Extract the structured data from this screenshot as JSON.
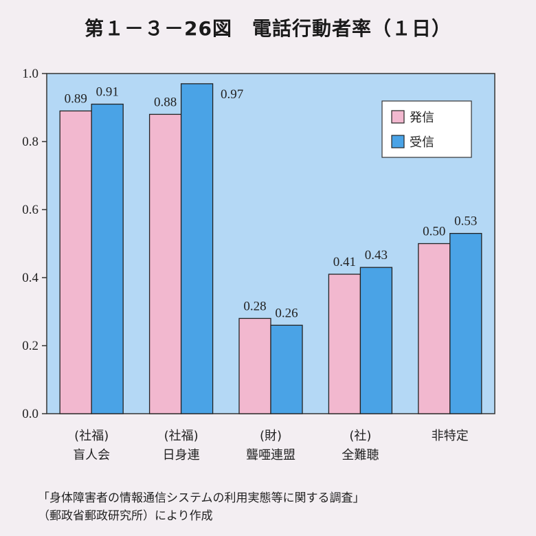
{
  "chart_data": {
    "type": "bar",
    "title": "第１－３－26図　電話行動者率（１日）",
    "categories": [
      [
        "(社福)",
        "盲人会"
      ],
      [
        "(社福)",
        "日身連"
      ],
      [
        "(財)",
        "聾唖連盟"
      ],
      [
        "(社)",
        "全難聴"
      ],
      [
        "非特定"
      ]
    ],
    "series": [
      {
        "name": "発信",
        "color": "#f2b8cf",
        "values": [
          0.89,
          0.88,
          0.28,
          0.41,
          0.5
        ],
        "labels": [
          "0.89",
          "0.88",
          "0.28",
          "0.41",
          "0.50"
        ]
      },
      {
        "name": "受信",
        "color": "#4aa3e6",
        "values": [
          0.91,
          0.97,
          0.26,
          0.43,
          0.53
        ],
        "labels": [
          "0.91",
          "0.97",
          "0.26",
          "0.43",
          "0.53"
        ]
      }
    ],
    "ylim": [
      0,
      1.0
    ],
    "yticks": [
      "0.0",
      "0.2",
      "0.4",
      "0.6",
      "0.8",
      "1.0"
    ],
    "plot_background": "#b4d8f5",
    "grid": false,
    "legend_position": "top-right"
  },
  "source_note": {
    "line1": "「身体障害者の情報通信システムの利用実態等に関する調査」",
    "line2": "（郵政省郵政研究所）により作成"
  }
}
